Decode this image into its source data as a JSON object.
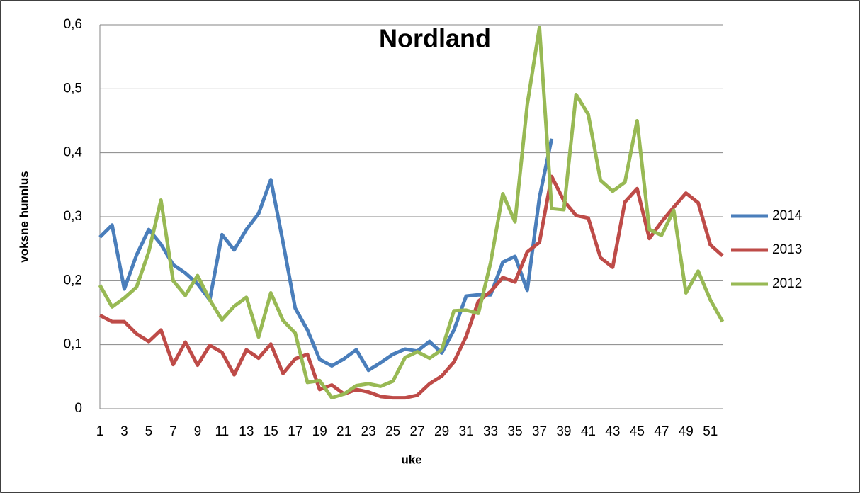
{
  "chart_data": {
    "type": "line",
    "title": "Nordland",
    "x_label": "uke",
    "y_label": "voksne hunnlus",
    "categories": [
      1,
      null,
      3,
      null,
      5,
      null,
      7,
      null,
      9,
      null,
      11,
      null,
      13,
      null,
      15,
      null,
      17,
      null,
      19,
      null,
      21,
      null,
      23,
      null,
      25,
      null,
      27,
      null,
      29,
      null,
      31,
      null,
      33,
      null,
      35,
      null,
      37,
      null,
      39,
      null,
      41,
      null,
      43,
      null,
      45,
      null,
      47,
      null,
      49,
      null,
      51,
      null
    ],
    "series": [
      {
        "name": "2014",
        "color": "#4a7ebb",
        "values": [
          0.268,
          0.287,
          0.187,
          0.24,
          0.28,
          0.257,
          0.225,
          0.212,
          0.195,
          0.17,
          0.272,
          0.248,
          0.28,
          0.305,
          0.358,
          0.26,
          0.157,
          0.123,
          0.077,
          0.067,
          0.078,
          0.092,
          0.06,
          0.072,
          0.085,
          0.093,
          0.09,
          0.105,
          0.087,
          0.123,
          0.176,
          0.178,
          0.178,
          0.229,
          0.238,
          0.185,
          0.33,
          0.422,
          null,
          null,
          null,
          null,
          null,
          null,
          null,
          null,
          null,
          null,
          null,
          null,
          null,
          null
        ]
      },
      {
        "name": "2013",
        "color": "#be4b48",
        "values": [
          0.146,
          0.136,
          0.136,
          0.117,
          0.105,
          0.123,
          0.069,
          0.104,
          0.068,
          0.099,
          0.088,
          0.053,
          0.092,
          0.079,
          0.101,
          0.055,
          0.078,
          0.085,
          0.03,
          0.037,
          0.023,
          0.03,
          0.026,
          0.019,
          0.017,
          0.017,
          0.021,
          0.039,
          0.051,
          0.073,
          0.113,
          0.168,
          0.183,
          0.205,
          0.198,
          0.245,
          0.26,
          0.363,
          0.325,
          0.302,
          0.298,
          0.236,
          0.221,
          0.323,
          0.344,
          0.266,
          0.292,
          0.315,
          0.337,
          0.322,
          0.256,
          0.239
        ]
      },
      {
        "name": "2012",
        "color": "#98b954",
        "values": [
          0.193,
          0.159,
          0.173,
          0.19,
          0.245,
          0.326,
          0.2,
          0.177,
          0.208,
          0.17,
          0.139,
          0.16,
          0.174,
          0.112,
          0.181,
          0.138,
          0.118,
          0.041,
          0.044,
          0.017,
          0.023,
          0.036,
          0.039,
          0.035,
          0.043,
          0.08,
          0.089,
          0.079,
          0.092,
          0.153,
          0.154,
          0.149,
          0.228,
          0.336,
          0.292,
          0.475,
          0.596,
          0.313,
          0.311,
          0.491,
          0.46,
          0.357,
          0.34,
          0.354,
          0.45,
          0.28,
          0.271,
          0.31,
          0.181,
          0.215,
          0.17,
          0.136
        ]
      }
    ],
    "ylim": [
      0,
      0.6
    ],
    "yticks": [
      0,
      {
        "value": 0.1,
        "label": "0,1"
      },
      {
        "value": 0.2,
        "label": "0,2"
      },
      {
        "value": 0.3,
        "label": "0,3"
      },
      {
        "value": 0.4,
        "label": "0,4"
      },
      {
        "value": 0.5,
        "label": "0,5"
      },
      {
        "value": 0.6,
        "label": "0,6"
      }
    ],
    "grid": true,
    "legend": "right"
  }
}
